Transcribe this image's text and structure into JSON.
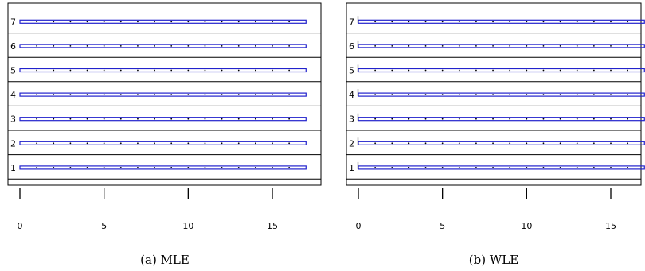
{
  "chart_data": [
    {
      "type": "strip",
      "caption": "(a) MLE",
      "rows": [
        "1",
        "2",
        "3",
        "4",
        "5",
        "6",
        "7"
      ],
      "x_ticks": [
        0,
        5,
        10,
        15
      ],
      "xlim": [
        -0.6,
        17.8
      ],
      "band_range": [
        0,
        17
      ],
      "points": [
        1,
        2,
        3,
        4,
        5,
        6,
        7,
        8,
        9,
        10,
        11,
        12,
        13,
        14,
        15,
        16
      ],
      "band_color": "#2222cc"
    },
    {
      "type": "strip",
      "caption": "(b) WLE",
      "rows": [
        "1",
        "2",
        "3",
        "4",
        "5",
        "6",
        "7"
      ],
      "x_ticks": [
        0,
        5,
        10,
        15
      ],
      "xlim": [
        -0.6,
        17.8
      ],
      "band_range": [
        0,
        17
      ],
      "points": [
        1,
        2,
        3,
        4,
        5,
        6,
        7,
        8,
        9,
        10,
        11,
        12,
        13,
        14,
        15,
        16
      ],
      "band_color": "#2222cc"
    }
  ]
}
